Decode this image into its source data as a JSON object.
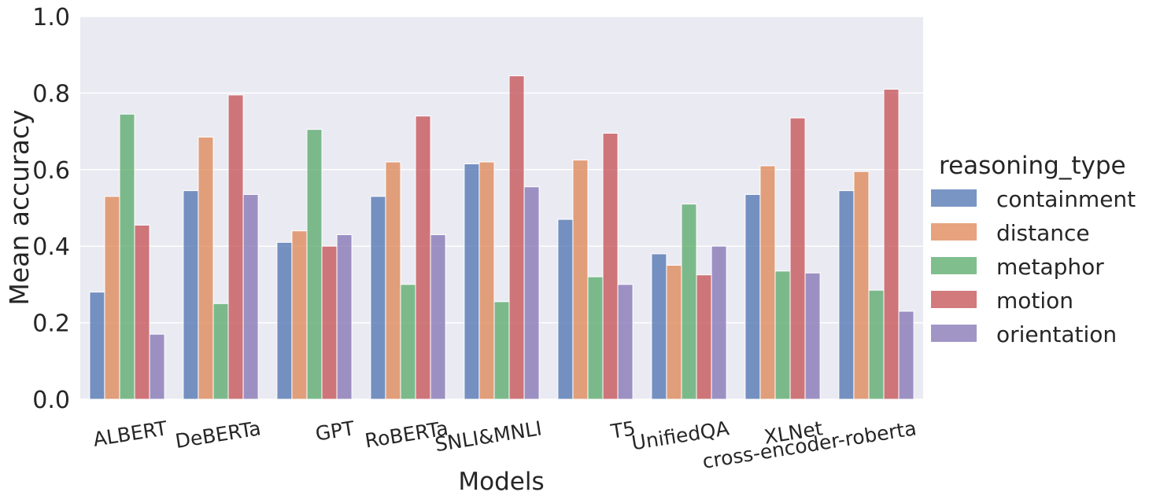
{
  "chart_data": {
    "type": "bar",
    "xlabel": "Models",
    "ylabel": "Mean accuracy",
    "ylim": [
      0,
      1.0
    ],
    "yticks": [
      "0.0",
      "0.2",
      "0.4",
      "0.6",
      "0.8",
      "1.0"
    ],
    "grid": true,
    "categories": [
      "ALBERT",
      "DeBERTa",
      "GPT",
      "RoBERTa",
      "SNLI&MNLI",
      "T5",
      "UnifiedQA",
      "XLNet",
      "cross-encoder-roberta"
    ],
    "legend": {
      "title": "reasoning_type",
      "placement": "right"
    },
    "series": [
      {
        "name": "containment",
        "color": "#4c72b0",
        "values": [
          0.28,
          0.545,
          0.41,
          0.53,
          0.615,
          0.47,
          0.38,
          0.535,
          0.545
        ]
      },
      {
        "name": "distance",
        "color": "#dd8452",
        "values": [
          0.53,
          0.685,
          0.44,
          0.62,
          0.62,
          0.625,
          0.35,
          0.61,
          0.595
        ]
      },
      {
        "name": "metaphor",
        "color": "#55a868",
        "values": [
          0.745,
          0.25,
          0.705,
          0.3,
          0.255,
          0.32,
          0.51,
          0.335,
          0.285
        ]
      },
      {
        "name": "motion",
        "color": "#c44e52",
        "values": [
          0.455,
          0.795,
          0.4,
          0.74,
          0.845,
          0.695,
          0.325,
          0.735,
          0.81
        ]
      },
      {
        "name": "orientation",
        "color": "#8172b3",
        "values": [
          0.17,
          0.535,
          0.43,
          0.43,
          0.555,
          0.3,
          0.4,
          0.33,
          0.23
        ]
      }
    ]
  }
}
